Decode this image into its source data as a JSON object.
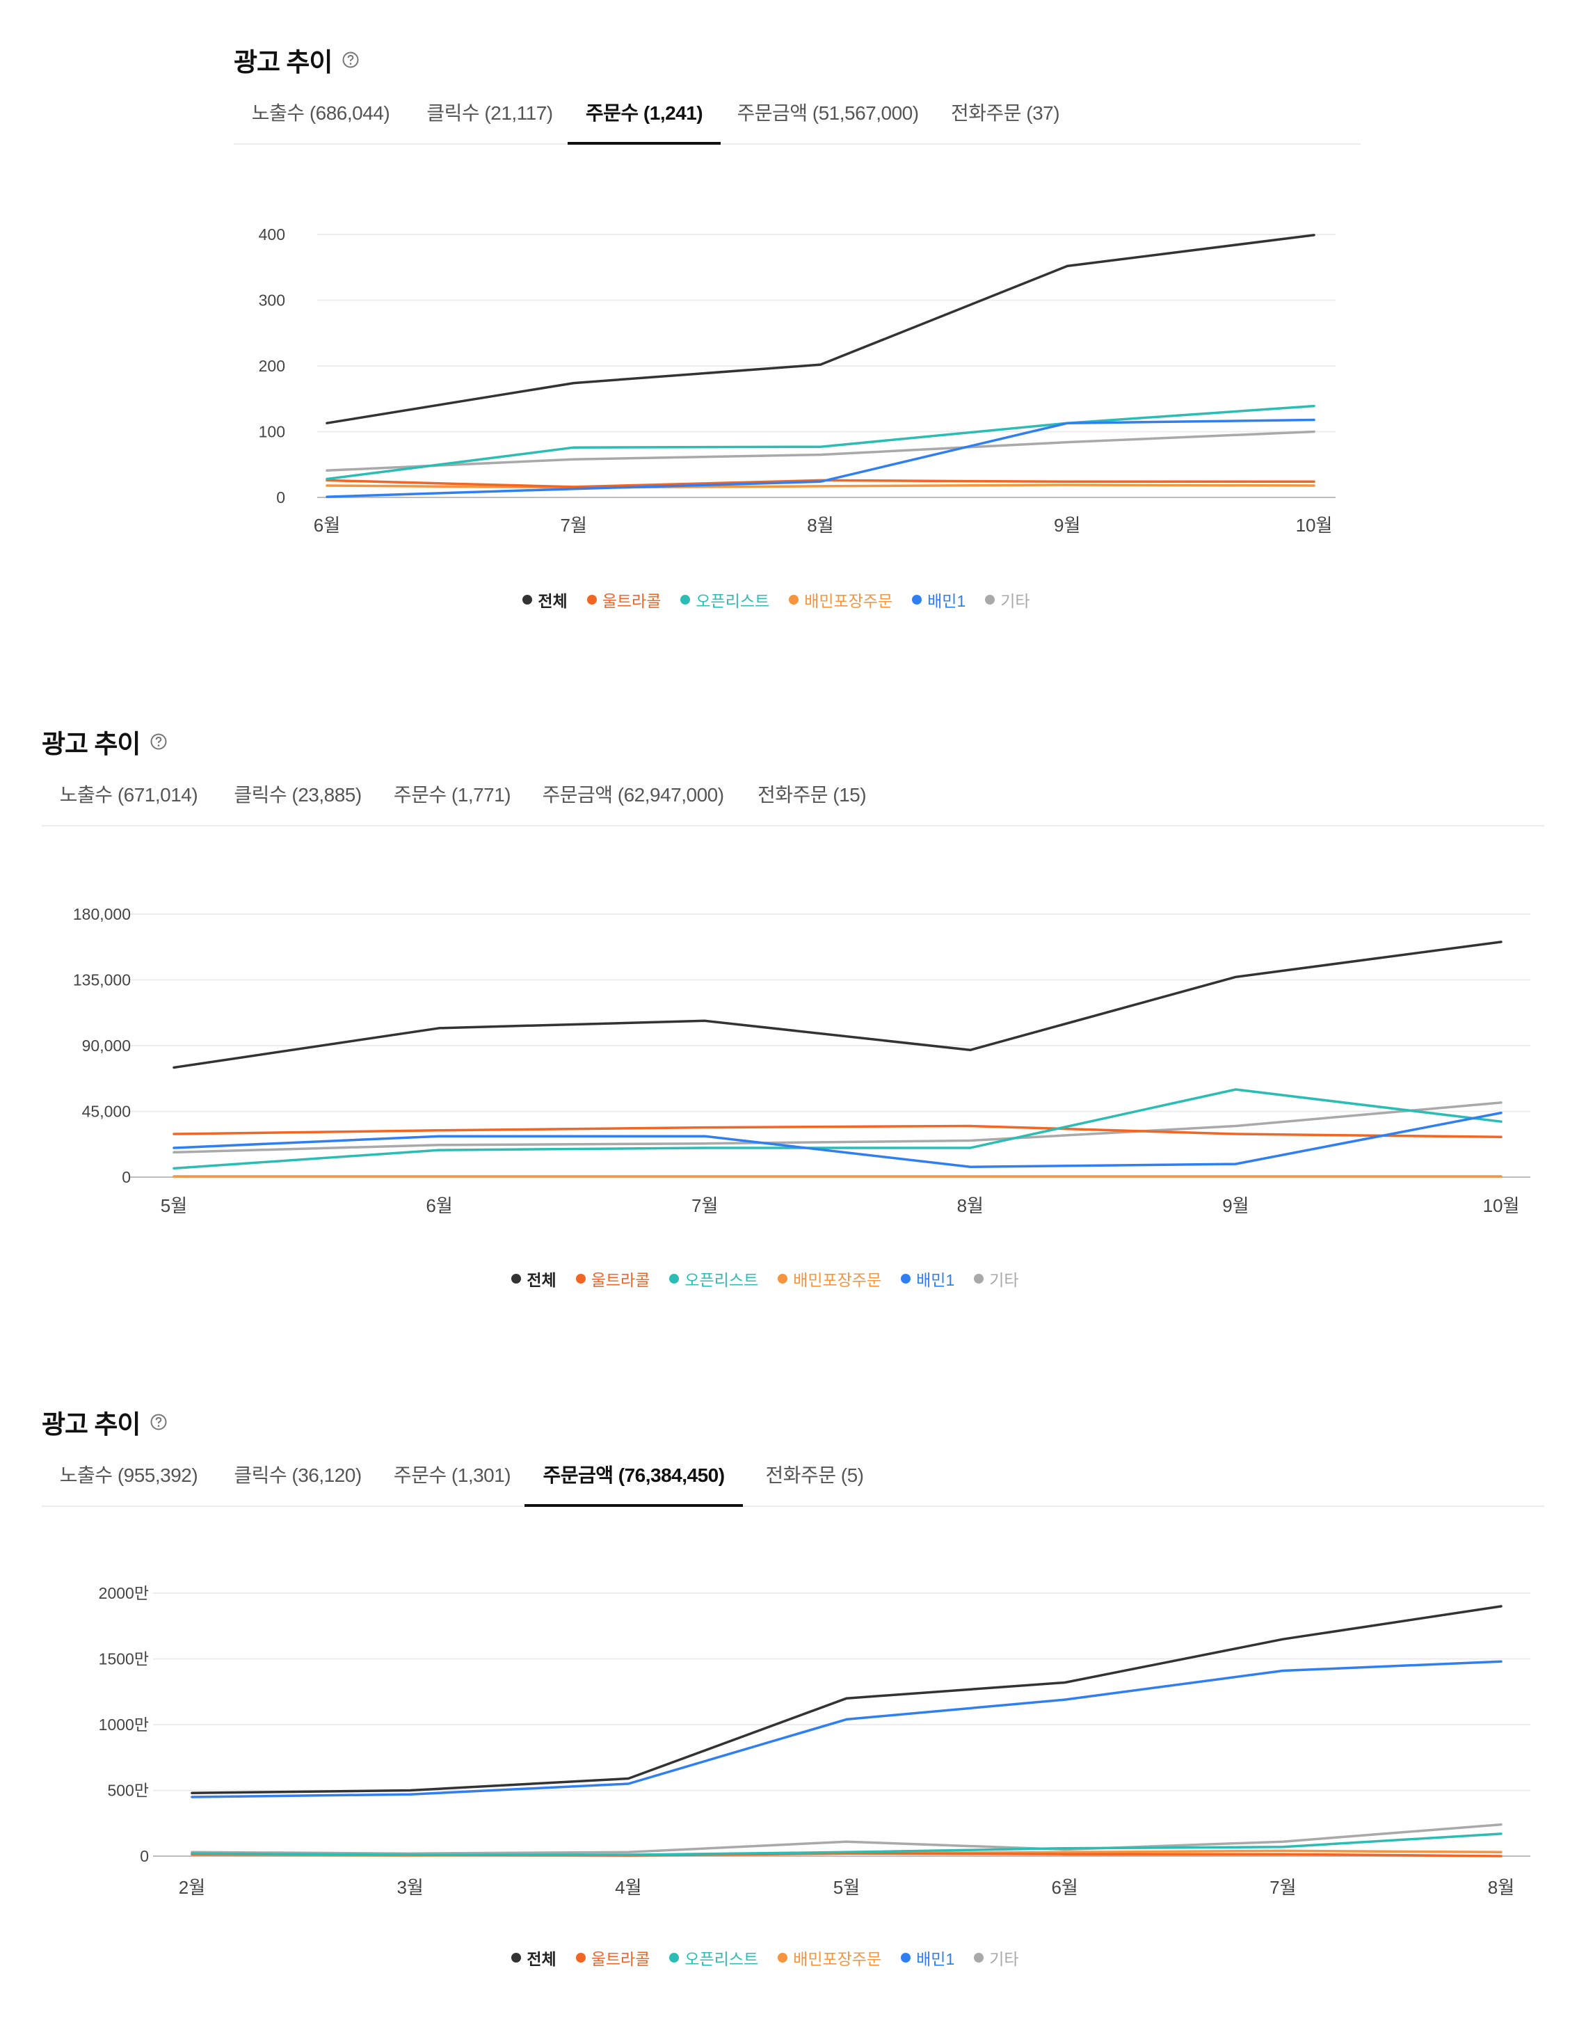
{
  "panels": [
    {
      "title": "광고 추이",
      "tabs": [
        "노출수 (686,044)",
        "클릭수 (21,117)",
        "주문수 (1,241)",
        "주문금액 (51,567,000)",
        "전화주문 (37)"
      ],
      "active_tab": 2
    },
    {
      "title": "광고 추이",
      "tabs": [
        "노출수 (671,014)",
        "클릭수 (23,885)",
        "주문수 (1,771)",
        "주문금액 (62,947,000)",
        "전화주문 (15)"
      ],
      "active_tab": -1
    },
    {
      "title": "광고 추이",
      "tabs": [
        "노출수 (955,392)",
        "클릭수 (36,120)",
        "주문수 (1,301)",
        "주문금액 (76,384,450)",
        "전화주문 (5)"
      ],
      "active_tab": 3
    }
  ],
  "legend": [
    {
      "name": "전체",
      "color": "#333333"
    },
    {
      "name": "울트라콜",
      "color": "#f26522"
    },
    {
      "name": "오픈리스트",
      "color": "#2bbdb4"
    },
    {
      "name": "배민포장주문",
      "color": "#f7943e"
    },
    {
      "name": "배민1",
      "color": "#2f7ff2"
    },
    {
      "name": "기타",
      "color": "#a9a9a9"
    }
  ],
  "chart_data": [
    {
      "type": "line",
      "categories": [
        "6월",
        "7월",
        "8월",
        "9월",
        "10월"
      ],
      "ylim": [
        0,
        400
      ],
      "yticks": [
        "0",
        "100",
        "200",
        "300",
        "400"
      ],
      "ytick_values": [
        0,
        100,
        200,
        300,
        400
      ],
      "grid": true,
      "legend_position": "bottom-center",
      "series": [
        {
          "name": "전체",
          "color": "#333333",
          "values": [
            113,
            174,
            202,
            352,
            399
          ]
        },
        {
          "name": "울트라콜",
          "color": "#f26522",
          "values": [
            26,
            16,
            26,
            24,
            24
          ]
        },
        {
          "name": "오픈리스트",
          "color": "#2bbdb4",
          "values": [
            28,
            76,
            77,
            113,
            139
          ]
        },
        {
          "name": "배민포장주문",
          "color": "#f7943e",
          "values": [
            18,
            15,
            17,
            19,
            18
          ]
        },
        {
          "name": "배민1",
          "color": "#2f7ff2",
          "values": [
            1,
            13,
            24,
            113,
            118
          ]
        },
        {
          "name": "기타",
          "color": "#a9a9a9",
          "values": [
            41,
            58,
            65,
            84,
            100
          ]
        }
      ]
    },
    {
      "type": "line",
      "categories": [
        "5월",
        "6월",
        "7월",
        "8월",
        "9월",
        "10월"
      ],
      "ylim": [
        0,
        180000
      ],
      "yticks": [
        "0",
        "45,000",
        "90,000",
        "135,000",
        "180,000"
      ],
      "ytick_values": [
        0,
        45000,
        90000,
        135000,
        180000
      ],
      "grid": true,
      "legend_position": "bottom-center",
      "series": [
        {
          "name": "전체",
          "color": "#333333",
          "values": [
            75000,
            102000,
            107000,
            87000,
            137000,
            161000
          ]
        },
        {
          "name": "울트라콜",
          "color": "#f26522",
          "values": [
            29500,
            32000,
            34000,
            35000,
            29500,
            27500
          ]
        },
        {
          "name": "오픈리스트",
          "color": "#2bbdb4",
          "values": [
            6000,
            18500,
            20000,
            20000,
            60000,
            38000
          ]
        },
        {
          "name": "배민포장주문",
          "color": "#f7943e",
          "values": [
            500,
            500,
            500,
            500,
            500,
            500
          ]
        },
        {
          "name": "배민1",
          "color": "#2f7ff2",
          "values": [
            20000,
            28000,
            28000,
            7000,
            9000,
            44000
          ]
        },
        {
          "name": "기타",
          "color": "#a9a9a9",
          "values": [
            17000,
            22000,
            23000,
            25000,
            35000,
            51000
          ]
        }
      ]
    },
    {
      "type": "line",
      "categories": [
        "2월",
        "3월",
        "4월",
        "5월",
        "6월",
        "7월",
        "8월"
      ],
      "ylim": [
        0,
        20000000
      ],
      "yticks": [
        "0",
        "500만",
        "1000만",
        "1500만",
        "2000만"
      ],
      "ytick_values": [
        0,
        5000000,
        10000000,
        15000000,
        20000000
      ],
      "grid": true,
      "legend_position": "bottom-center",
      "series": [
        {
          "name": "전체",
          "color": "#333333",
          "values": [
            4800000,
            5000000,
            5900000,
            12000000,
            13200000,
            16500000,
            19000000
          ]
        },
        {
          "name": "울트라콜",
          "color": "#f26522",
          "values": [
            150000,
            100000,
            50000,
            200000,
            150000,
            150000,
            0
          ]
        },
        {
          "name": "오픈리스트",
          "color": "#2bbdb4",
          "values": [
            200000,
            100000,
            100000,
            300000,
            600000,
            700000,
            1700000
          ]
        },
        {
          "name": "배민포장주문",
          "color": "#f7943e",
          "values": [
            100000,
            50000,
            100000,
            200000,
            300000,
            400000,
            300000
          ]
        },
        {
          "name": "배민1",
          "color": "#2f7ff2",
          "values": [
            4500000,
            4700000,
            5500000,
            10400000,
            11900000,
            14100000,
            14800000
          ]
        },
        {
          "name": "기타",
          "color": "#a9a9a9",
          "values": [
            300000,
            200000,
            300000,
            1100000,
            500000,
            1100000,
            2400000
          ]
        }
      ]
    }
  ]
}
